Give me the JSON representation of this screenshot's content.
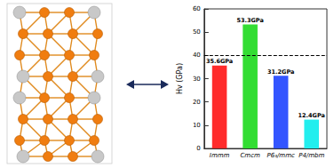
{
  "chart_data": {
    "type": "bar",
    "y_label": "Hv (GPa)",
    "categories": [
      "Immm",
      "Cmcm",
      "P6₃/mmc",
      "P4/mbm"
    ],
    "values": [
      35.6,
      53.3,
      31.2,
      12.4
    ],
    "value_labels": [
      "35.6GPa",
      "53.3GPa",
      "31.2GPa",
      "12.4GPa"
    ],
    "colors": [
      "#ff2b2b",
      "#33dd33",
      "#3355ff",
      "#22eeee"
    ],
    "reference_line": 40,
    "ylim": [
      0,
      60
    ],
    "yticks": [
      0,
      10,
      20,
      30,
      40,
      50,
      60
    ],
    "data_labels": true,
    "grid": false
  }
}
